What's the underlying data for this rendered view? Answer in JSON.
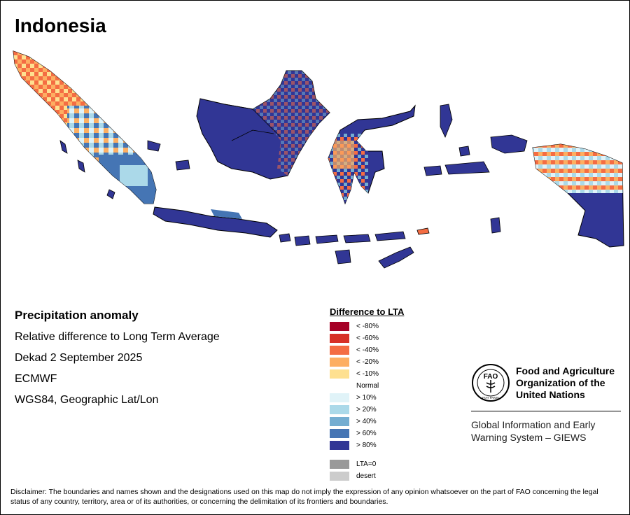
{
  "map": {
    "title": "Indonesia"
  },
  "info": {
    "heading": "Precipitation anomaly",
    "lines": [
      "Relative difference to Long Term Average",
      "Dekad 2 September 2025",
      "ECMWF",
      "WGS84, Geographic Lat/Lon"
    ]
  },
  "legend": {
    "title": "Difference to LTA",
    "items": [
      {
        "label": "< -80%",
        "color": "#a50026"
      },
      {
        "label": "< -60%",
        "color": "#d73027"
      },
      {
        "label": "< -40%",
        "color": "#f46d43"
      },
      {
        "label": "< -20%",
        "color": "#fdae61"
      },
      {
        "label": "< -10%",
        "color": "#fee090"
      },
      {
        "label": "Normal",
        "color": "#ffffff"
      },
      {
        "label": "> 10%",
        "color": "#e0f3f8"
      },
      {
        "label": "> 20%",
        "color": "#abd9e9"
      },
      {
        "label": "> 40%",
        "color": "#74add1"
      },
      {
        "label": "> 60%",
        "color": "#4575b4"
      },
      {
        "label": "> 80%",
        "color": "#313695"
      }
    ],
    "extra": [
      {
        "label": "LTA=0",
        "color": "#999999"
      },
      {
        "label": "desert",
        "color": "#cccccc"
      }
    ]
  },
  "fao": {
    "logo_letters": "FAO",
    "logo_motto": "FIAT PANIS",
    "org_lines": [
      "Food and Agriculture",
      "Organization of the",
      "United Nations"
    ],
    "giews_lines": [
      "Global Information and Early",
      "Warning System – GIEWS"
    ]
  },
  "disclaimer": "Disclaimer: The boundaries and names shown and the designations used on this map do not imply the expression of any opinion whatsoever on the part of FAO concerning the legal status of any country, territory, area or of its authorities, or concerning the delimitation of its frontiers and boundaries."
}
